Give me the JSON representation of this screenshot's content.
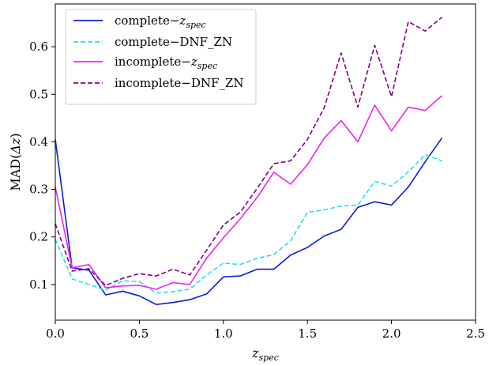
{
  "chart_data": {
    "type": "line",
    "xlabel_main": "z",
    "xlabel_sub": "spec",
    "ylabel_prefix": "MAD(",
    "ylabel_delta": "Δz",
    "ylabel_suffix": ")",
    "xlim": [
      0,
      2.5
    ],
    "ylim": [
      0.025,
      0.69
    ],
    "xticks": [
      0.0,
      0.5,
      1.0,
      1.5,
      2.0,
      2.5
    ],
    "xtick_labels": [
      "0.0",
      "0.5",
      "1.0",
      "1.5",
      "2.0",
      "2.5"
    ],
    "yticks": [
      0.1,
      0.2,
      0.3,
      0.4,
      0.5,
      0.6
    ],
    "ytick_labels": [
      "0.1",
      "0.2",
      "0.3",
      "0.4",
      "0.5",
      "0.6"
    ],
    "grid": false,
    "legend_position": "top-left",
    "x": [
      0.0,
      0.1,
      0.2,
      0.3,
      0.4,
      0.5,
      0.6,
      0.7,
      0.8,
      0.9,
      1.0,
      1.1,
      1.2,
      1.3,
      1.4,
      1.5,
      1.6,
      1.7,
      1.8,
      1.9,
      2.0,
      2.1,
      2.2,
      2.3
    ],
    "series": [
      {
        "name_main": "complete−",
        "name_var": "z",
        "name_sub": "spec",
        "color": "#0a1ed6",
        "dash": "solid",
        "values": [
          0.405,
          0.135,
          0.13,
          0.078,
          0.086,
          0.076,
          0.058,
          0.062,
          0.068,
          0.08,
          0.116,
          0.118,
          0.132,
          0.132,
          0.162,
          0.178,
          0.202,
          0.216,
          0.262,
          0.274,
          0.267,
          0.305,
          0.358,
          0.408
        ]
      },
      {
        "name_main": "complete−DNF_ZN",
        "name_var": "",
        "name_sub": "",
        "color": "#22e0f0",
        "dash": "dashed",
        "values": [
          0.195,
          0.112,
          0.1,
          0.088,
          0.108,
          0.106,
          0.082,
          0.085,
          0.09,
          0.12,
          0.145,
          0.142,
          0.155,
          0.163,
          0.192,
          0.252,
          0.257,
          0.265,
          0.267,
          0.317,
          0.307,
          0.337,
          0.373,
          0.36
        ]
      },
      {
        "name_main": "incomplete−",
        "name_var": "z",
        "name_sub": "spec",
        "color": "#f020f0",
        "dash": "solid",
        "values": [
          0.305,
          0.135,
          0.142,
          0.093,
          0.097,
          0.098,
          0.09,
          0.104,
          0.1,
          0.155,
          0.198,
          0.238,
          0.283,
          0.336,
          0.311,
          0.352,
          0.408,
          0.445,
          0.4,
          0.477,
          0.423,
          0.473,
          0.466,
          0.497
        ]
      },
      {
        "name_main": "incomplete−DNF_ZN",
        "name_var": "",
        "name_sub": "",
        "color": "#800080",
        "dash": "dashed",
        "values": [
          0.228,
          0.128,
          0.133,
          0.098,
          0.113,
          0.123,
          0.118,
          0.132,
          0.12,
          0.172,
          0.225,
          0.252,
          0.302,
          0.354,
          0.36,
          0.405,
          0.472,
          0.587,
          0.473,
          0.603,
          0.495,
          0.653,
          0.633,
          0.662
        ]
      }
    ]
  }
}
